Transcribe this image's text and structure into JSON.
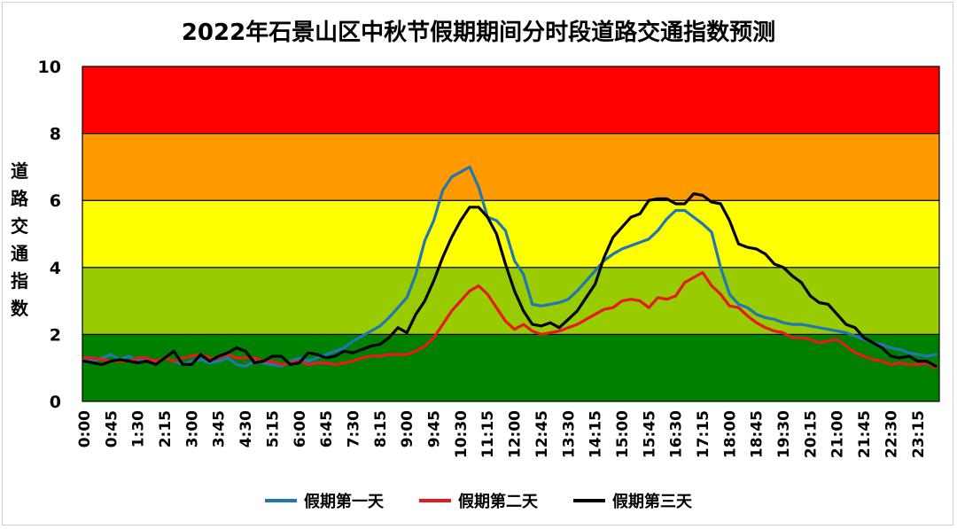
{
  "chart_data": {
    "type": "line",
    "title": "2022年石景山区中秋节假期期间分时段道路交通指数预测",
    "ylabel": "道路交通指数",
    "xlabel": "",
    "ylim": [
      0,
      10
    ],
    "yticks": [
      0,
      2,
      4,
      6,
      8,
      10
    ],
    "x_tick_labels": [
      "0:00",
      "0:45",
      "1:30",
      "2:15",
      "3:00",
      "3:45",
      "4:30",
      "5:15",
      "6:00",
      "6:45",
      "7:30",
      "8:15",
      "9:00",
      "9:45",
      "10:30",
      "11:15",
      "12:00",
      "12:45",
      "13:30",
      "14:15",
      "15:00",
      "15:45",
      "16:30",
      "17:15",
      "18:00",
      "18:45",
      "19:30",
      "20:15",
      "21:00",
      "21:45",
      "22:30",
      "23:15"
    ],
    "bands": [
      {
        "from": 0,
        "to": 2,
        "color": "#008000"
      },
      {
        "from": 2,
        "to": 4,
        "color": "#99CC00"
      },
      {
        "from": 4,
        "to": 6,
        "color": "#FFFF00"
      },
      {
        "from": 6,
        "to": 8,
        "color": "#FF9900"
      },
      {
        "from": 8,
        "to": 10,
        "color": "#FF0000"
      }
    ],
    "series": [
      {
        "name": "假期第一天",
        "color": "#1F77B4",
        "values": [
          1.25,
          1.2,
          1.3,
          1.4,
          1.25,
          1.35,
          1.2,
          1.3,
          1.15,
          1.3,
          1.2,
          1.1,
          1.2,
          1.25,
          1.15,
          1.2,
          1.3,
          1.1,
          1.05,
          1.2,
          1.15,
          1.1,
          1.05,
          1.2,
          1.3,
          1.2,
          1.3,
          1.4,
          1.5,
          1.6,
          1.8,
          1.95,
          2.1,
          2.25,
          2.5,
          2.8,
          3.1,
          3.8,
          4.8,
          5.4,
          6.3,
          6.7,
          6.85,
          7.0,
          6.4,
          5.5,
          5.4,
          5.1,
          4.2,
          3.8,
          2.9,
          2.85,
          2.9,
          2.95,
          3.05,
          3.3,
          3.6,
          3.9,
          4.2,
          4.4,
          4.55,
          4.65,
          4.75,
          4.85,
          5.1,
          5.45,
          5.7,
          5.7,
          5.5,
          5.3,
          5.05,
          4.0,
          3.2,
          2.9,
          2.8,
          2.6,
          2.5,
          2.45,
          2.35,
          2.3,
          2.3,
          2.25,
          2.2,
          2.15,
          2.1,
          2.05,
          1.95,
          1.85,
          1.75,
          1.7,
          1.6,
          1.55,
          1.45,
          1.4,
          1.35,
          1.4
        ]
      },
      {
        "name": "假期第二天",
        "color": "#E41A1C",
        "values": [
          1.3,
          1.3,
          1.25,
          1.2,
          1.2,
          1.2,
          1.3,
          1.3,
          1.2,
          1.3,
          1.2,
          1.3,
          1.35,
          1.4,
          1.3,
          1.3,
          1.4,
          1.3,
          1.3,
          1.3,
          1.2,
          1.2,
          1.1,
          1.15,
          1.2,
          1.1,
          1.15,
          1.15,
          1.1,
          1.15,
          1.2,
          1.3,
          1.35,
          1.35,
          1.4,
          1.4,
          1.4,
          1.5,
          1.65,
          1.9,
          2.3,
          2.7,
          3.0,
          3.3,
          3.45,
          3.2,
          2.8,
          2.4,
          2.15,
          2.3,
          2.1,
          2.0,
          2.05,
          2.1,
          2.2,
          2.3,
          2.45,
          2.6,
          2.75,
          2.8,
          3.0,
          3.05,
          3.0,
          2.8,
          3.1,
          3.05,
          3.15,
          3.55,
          3.7,
          3.85,
          3.45,
          3.2,
          2.85,
          2.8,
          2.55,
          2.35,
          2.2,
          2.1,
          2.05,
          1.9,
          1.9,
          1.85,
          1.75,
          1.8,
          1.85,
          1.65,
          1.45,
          1.35,
          1.25,
          1.2,
          1.1,
          1.15,
          1.1,
          1.1,
          1.15,
          1.0
        ]
      },
      {
        "name": "假期第三天",
        "color": "#000000",
        "values": [
          1.2,
          1.15,
          1.1,
          1.2,
          1.25,
          1.2,
          1.15,
          1.2,
          1.1,
          1.3,
          1.5,
          1.1,
          1.1,
          1.4,
          1.2,
          1.35,
          1.45,
          1.6,
          1.5,
          1.15,
          1.2,
          1.35,
          1.35,
          1.1,
          1.15,
          1.45,
          1.4,
          1.3,
          1.35,
          1.5,
          1.45,
          1.55,
          1.65,
          1.7,
          1.9,
          2.2,
          2.05,
          2.6,
          3.0,
          3.6,
          4.3,
          4.9,
          5.4,
          5.8,
          5.8,
          5.5,
          5.0,
          4.1,
          3.3,
          2.7,
          2.3,
          2.25,
          2.35,
          2.2,
          2.45,
          2.7,
          3.1,
          3.5,
          4.3,
          4.9,
          5.2,
          5.5,
          5.6,
          6.0,
          6.05,
          6.05,
          5.9,
          5.9,
          6.2,
          6.15,
          5.95,
          5.9,
          5.4,
          4.7,
          4.6,
          4.55,
          4.4,
          4.1,
          4.0,
          3.75,
          3.55,
          3.15,
          2.95,
          2.9,
          2.6,
          2.3,
          2.2,
          1.9,
          1.75,
          1.6,
          1.35,
          1.3,
          1.35,
          1.2,
          1.2,
          1.05
        ]
      }
    ]
  }
}
